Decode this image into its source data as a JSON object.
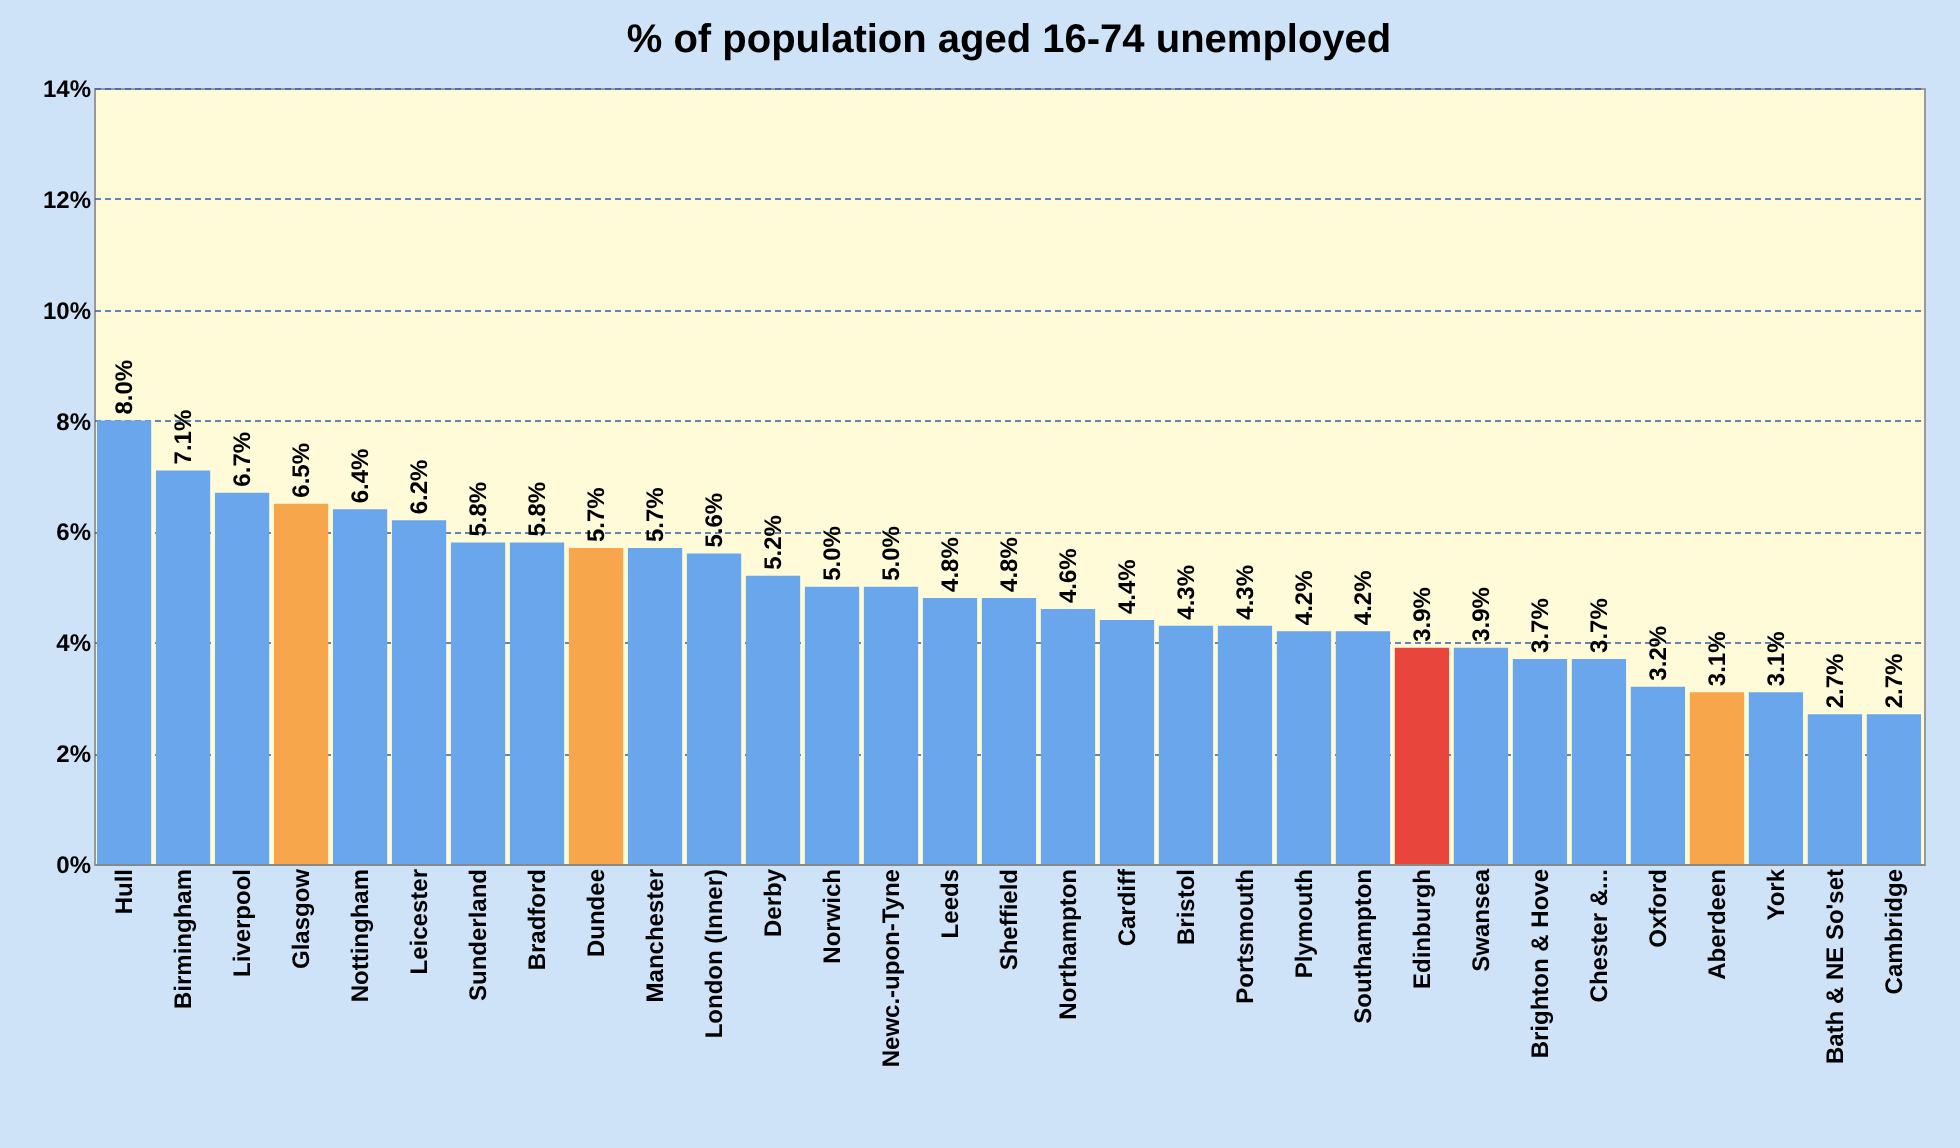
{
  "chart_data": {
    "type": "bar",
    "title": "% of population aged 16-74 unemployed",
    "categories": [
      "Hull",
      "Birmingham",
      "Liverpool",
      "Glasgow",
      "Nottingham",
      "Leicester",
      "Sunderland",
      "Bradford",
      "Dundee",
      "Manchester",
      "London (Inner)",
      "Derby",
      "Norwich",
      "Newc.-upon-Tyne",
      "Leeds",
      "Sheffield",
      "Northampton",
      "Cardiff",
      "Bristol",
      "Portsmouth",
      "Plymouth",
      "Southampton",
      "Edinburgh",
      "Swansea",
      "Brighton & Hove",
      "Chester &...",
      "Oxford",
      "Aberdeen",
      "York",
      "Bath & NE So'set",
      "Cambridge"
    ],
    "values": [
      8.0,
      7.1,
      6.7,
      6.5,
      6.4,
      6.2,
      5.8,
      5.8,
      5.7,
      5.7,
      5.6,
      5.2,
      5.0,
      5.0,
      4.8,
      4.8,
      4.6,
      4.4,
      4.3,
      4.3,
      4.2,
      4.2,
      3.9,
      3.9,
      3.7,
      3.7,
      3.2,
      3.1,
      3.1,
      2.7,
      2.7
    ],
    "value_labels": [
      "8.0%",
      "7.1%",
      "6.7%",
      "6.5%",
      "6.4%",
      "6.2%",
      "5.8%",
      "5.8%",
      "5.7%",
      "5.7%",
      "5.6%",
      "5.2%",
      "5.0%",
      "5.0%",
      "4.8%",
      "4.8%",
      "4.6%",
      "4.4%",
      "4.3%",
      "4.3%",
      "4.2%",
      "4.2%",
      "3.9%",
      "3.9%",
      "3.7%",
      "3.7%",
      "3.2%",
      "3.1%",
      "3.1%",
      "2.7%",
      "2.7%"
    ],
    "colors": [
      "#6aa6ec",
      "#6aa6ec",
      "#6aa6ec",
      "#f7a64c",
      "#6aa6ec",
      "#6aa6ec",
      "#6aa6ec",
      "#6aa6ec",
      "#f7a64c",
      "#6aa6ec",
      "#6aa6ec",
      "#6aa6ec",
      "#6aa6ec",
      "#6aa6ec",
      "#6aa6ec",
      "#6aa6ec",
      "#6aa6ec",
      "#6aa6ec",
      "#6aa6ec",
      "#6aa6ec",
      "#6aa6ec",
      "#6aa6ec",
      "#e8453c",
      "#6aa6ec",
      "#6aa6ec",
      "#6aa6ec",
      "#6aa6ec",
      "#f7a64c",
      "#6aa6ec",
      "#6aa6ec",
      "#6aa6ec"
    ],
    "ylim": [
      0,
      14
    ],
    "yticks": [
      {
        "value": 0,
        "label": "0%"
      },
      {
        "value": 2,
        "label": "2%"
      },
      {
        "value": 4,
        "label": "4%"
      },
      {
        "value": 6,
        "label": "6%"
      },
      {
        "value": 8,
        "label": "8%"
      },
      {
        "value": 10,
        "label": "10%"
      },
      {
        "value": 12,
        "label": "12%"
      },
      {
        "value": 14,
        "label": "14%"
      }
    ],
    "grid": "y"
  }
}
